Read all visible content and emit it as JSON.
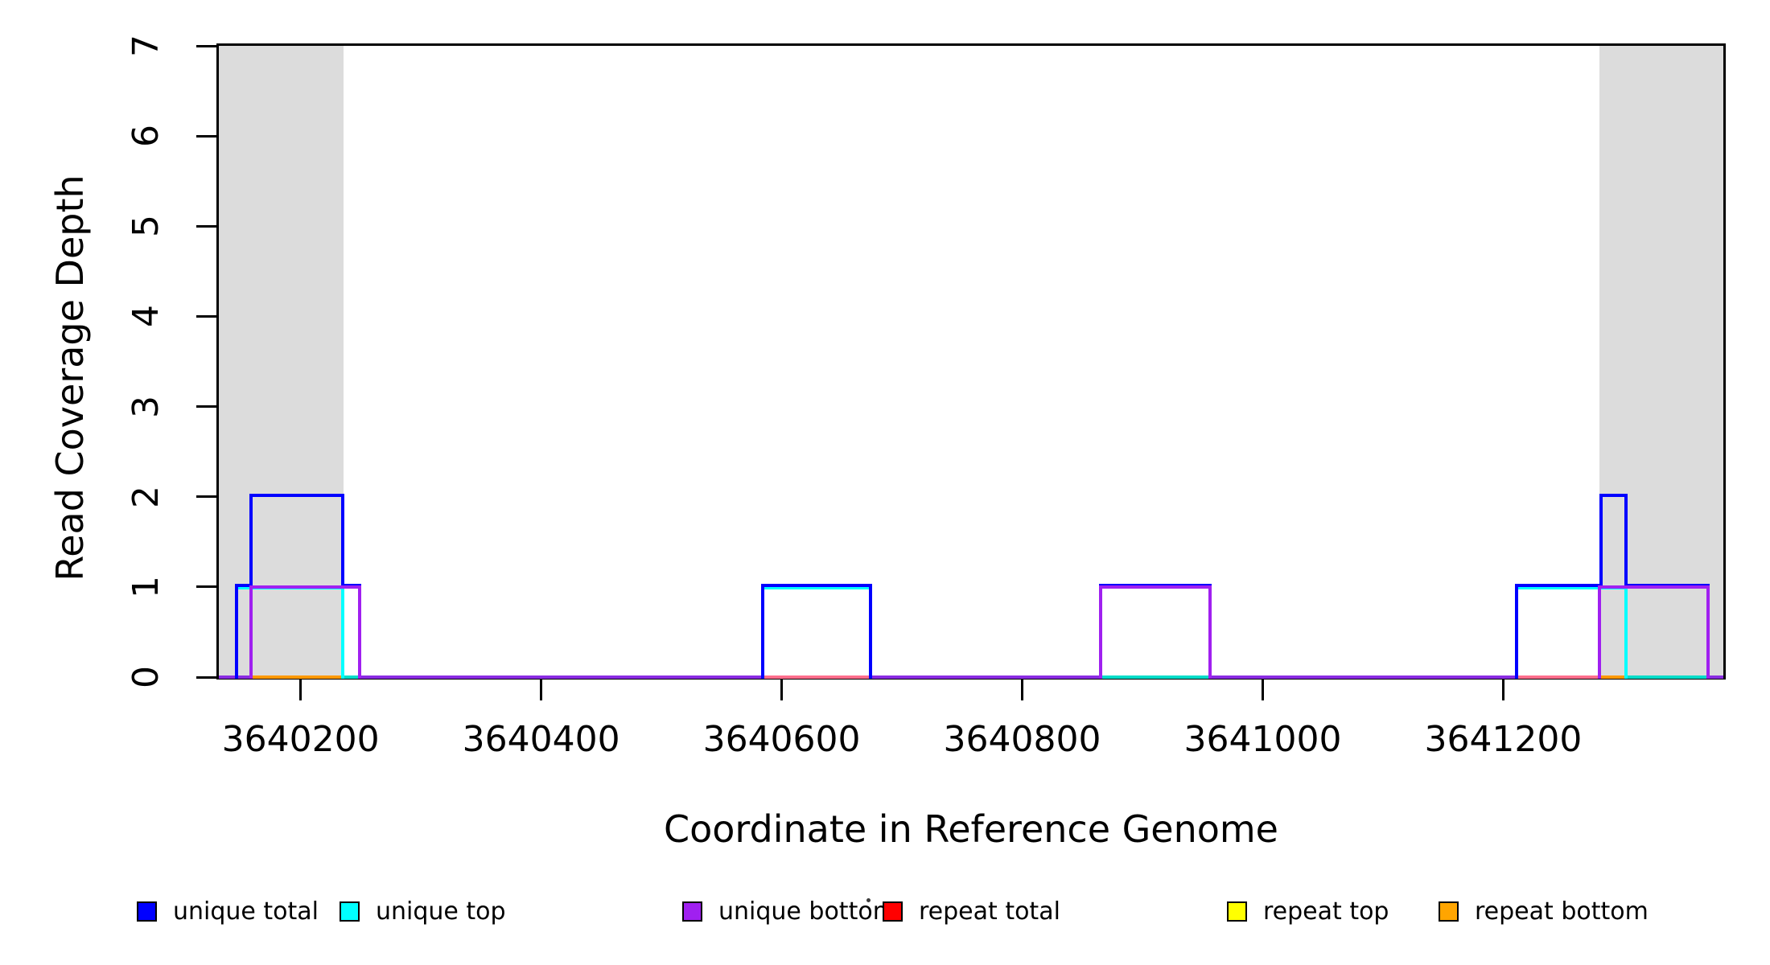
{
  "figure": {
    "x_axis_title": "Coordinate in Reference Genome",
    "y_axis_title": "Read Coverage Depth"
  },
  "axes": {
    "x_ticks": [
      {
        "value": 3640200,
        "label": "3640200"
      },
      {
        "value": 3640400,
        "label": "3640400"
      },
      {
        "value": 3640600,
        "label": "3640600"
      },
      {
        "value": 3640800,
        "label": "3640800"
      },
      {
        "value": 3641000,
        "label": "3641000"
      },
      {
        "value": 3641200,
        "label": "3641200"
      }
    ],
    "y_ticks": [
      {
        "value": 0,
        "label": "0"
      },
      {
        "value": 1,
        "label": "1"
      },
      {
        "value": 2,
        "label": "2"
      },
      {
        "value": 3,
        "label": "3"
      },
      {
        "value": 4,
        "label": "4"
      },
      {
        "value": 5,
        "label": "5"
      },
      {
        "value": 6,
        "label": "6"
      },
      {
        "value": 7,
        "label": "7"
      }
    ]
  },
  "legend": {
    "items": [
      {
        "label": "unique total",
        "color": "#0000FF"
      },
      {
        "label": "unique top",
        "color": "#00FFFF"
      },
      {
        "label": "unique bottom",
        "color": "#A020F0"
      },
      {
        "label": "repeat total",
        "color": "#FF0000"
      },
      {
        "label": "repeat top",
        "color": "#FFFF00"
      },
      {
        "label": "repeat bottom",
        "color": "#FFA500"
      }
    ]
  },
  "chart_data": {
    "type": "line",
    "subtype": "step-coverage-plot",
    "title": "",
    "xlabel": "Coordinate in Reference Genome",
    "ylabel": "Read Coverage Depth",
    "xlim": [
      3640132,
      3641383
    ],
    "ylim": [
      0,
      7
    ],
    "grid": false,
    "legend_position": "bottom",
    "shade_color": "#DCDCDC",
    "shaded_regions": [
      {
        "from": 3640132,
        "to": 3640236
      },
      {
        "from": 3641280,
        "to": 3641383
      }
    ],
    "series": [
      {
        "name": "unique total",
        "color": "#0000FF",
        "steps": [
          [
            3640132,
            0
          ],
          [
            3640147,
            1
          ],
          [
            3640159,
            2
          ],
          [
            3640235,
            1
          ],
          [
            3640249,
            0
          ],
          [
            3640584,
            1
          ],
          [
            3640674,
            0
          ],
          [
            3640865,
            1
          ],
          [
            3640956,
            0
          ],
          [
            3641211,
            1
          ],
          [
            3641281,
            2
          ],
          [
            3641302,
            1
          ],
          [
            3641370,
            0
          ]
        ]
      },
      {
        "name": "unique top",
        "color": "#00FFFF",
        "steps": [
          [
            3640132,
            0
          ],
          [
            3640147,
            1
          ],
          [
            3640235,
            0
          ],
          [
            3640584,
            1
          ],
          [
            3640674,
            0
          ],
          [
            3641211,
            1
          ],
          [
            3641302,
            0
          ]
        ]
      },
      {
        "name": "unique bottom",
        "color": "#A020F0",
        "steps": [
          [
            3640132,
            0
          ],
          [
            3640159,
            1
          ],
          [
            3640249,
            0
          ],
          [
            3640865,
            1
          ],
          [
            3640956,
            0
          ],
          [
            3641280,
            1
          ],
          [
            3641370,
            0
          ]
        ]
      },
      {
        "name": "repeat total",
        "color": "#FF0000",
        "steps": [
          [
            3640132,
            0
          ]
        ]
      },
      {
        "name": "repeat top",
        "color": "#FFFF00",
        "steps": [
          [
            3640132,
            0
          ]
        ]
      },
      {
        "name": "repeat bottom",
        "color": "#FFA500",
        "steps": [
          [
            3640132,
            0
          ]
        ]
      }
    ],
    "baseline_segments": [
      {
        "from": 3640132,
        "to": 3640159,
        "color": "#8A2BE2"
      },
      {
        "from": 3640159,
        "to": 3640235,
        "color": "#FF9800"
      },
      {
        "from": 3640235,
        "to": 3640249,
        "color": "#00DCC8"
      },
      {
        "from": 3640249,
        "to": 3640584,
        "color": "#8A2BE2"
      },
      {
        "from": 3640584,
        "to": 3640674,
        "color": "#FF6E8C"
      },
      {
        "from": 3640674,
        "to": 3640865,
        "color": "#8A2BE2"
      },
      {
        "from": 3640865,
        "to": 3640956,
        "color": "#00DCC8"
      },
      {
        "from": 3640956,
        "to": 3641211,
        "color": "#8A2BE2"
      },
      {
        "from": 3641211,
        "to": 3641280,
        "color": "#FF6E8C"
      },
      {
        "from": 3641280,
        "to": 3641302,
        "color": "#FF9800"
      },
      {
        "from": 3641302,
        "to": 3641370,
        "color": "#00DCC8"
      },
      {
        "from": 3641370,
        "to": 3641383,
        "color": "#8A2BE2"
      }
    ]
  }
}
